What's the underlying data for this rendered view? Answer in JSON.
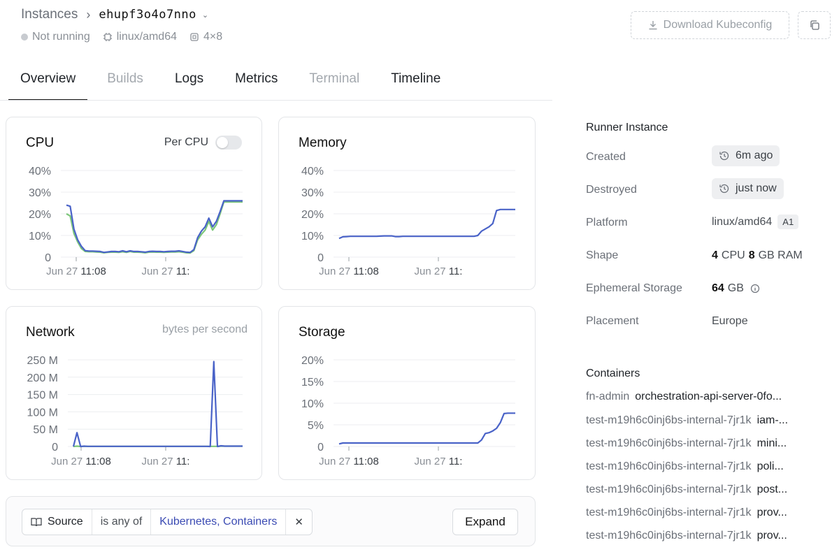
{
  "breadcrumb": {
    "root": "Instances",
    "instance_id": "ehupf3o4o7nno"
  },
  "meta": {
    "status": "Not running",
    "platform": "linux/amd64",
    "shape": "4×8"
  },
  "actions": {
    "download_label": "Download Kubeconfig"
  },
  "tabs": [
    {
      "label": "Overview",
      "state": "active"
    },
    {
      "label": "Builds",
      "state": "disabled"
    },
    {
      "label": "Logs",
      "state": "enabled"
    },
    {
      "label": "Metrics",
      "state": "enabled"
    },
    {
      "label": "Terminal",
      "state": "disabled"
    },
    {
      "label": "Timeline",
      "state": "enabled"
    }
  ],
  "cards": {
    "cpu": {
      "title": "CPU",
      "toggle_label": "Per CPU"
    },
    "memory": {
      "title": "Memory"
    },
    "network": {
      "title": "Network",
      "subtitle": "bytes per second"
    },
    "storage": {
      "title": "Storage"
    }
  },
  "colors": {
    "series_primary": "#4a63c8",
    "series_secondary": "#7cc67a",
    "grid": "#eceef0"
  },
  "chart_data": [
    {
      "id": "cpu",
      "type": "line",
      "ylim": [
        0,
        40
      ],
      "yticks": [
        "40%",
        "30%",
        "20%",
        "10%",
        "0"
      ],
      "x_tick_labels": [
        {
          "date": "Jun 27",
          "time": "11:08"
        },
        {
          "date": "Jun 27",
          "time": "11:"
        }
      ],
      "series": [
        {
          "values": [
            24,
            23.5,
            13,
            8,
            5,
            3,
            2.8,
            2.8,
            2.7,
            2.6,
            2.2,
            2.4,
            2.6,
            2.6,
            2.5,
            2.9,
            2.5,
            2.9,
            2.6,
            2.6,
            2.5,
            2.3,
            2.6,
            2.7,
            2.6,
            2.6,
            2.5,
            2.6,
            2.7,
            2.7,
            2.9,
            2.6,
            2.3,
            2.2,
            3.5,
            9,
            12,
            14,
            18,
            14,
            16.5,
            21,
            26,
            26,
            26,
            26,
            26,
            26
          ]
        },
        {
          "values": [
            20,
            19,
            11,
            7,
            4,
            2.6,
            2.5,
            2.5,
            2.4,
            2.3,
            2.0,
            2.2,
            2.3,
            2.3,
            2.2,
            2.5,
            2.2,
            2.6,
            2.3,
            2.3,
            2.2,
            2.0,
            2.3,
            2.4,
            2.3,
            2.3,
            2.2,
            2.3,
            2.4,
            2.4,
            2.5,
            2.3,
            2.0,
            1.9,
            3,
            8,
            10.5,
            12.5,
            16.5,
            12.5,
            15,
            20,
            25.5,
            25.5,
            25.5,
            25.5,
            25.5,
            25.5
          ]
        }
      ]
    },
    {
      "id": "memory",
      "type": "line",
      "ylim": [
        0,
        40
      ],
      "yticks": [
        "40%",
        "30%",
        "20%",
        "10%",
        "0"
      ],
      "x_tick_labels": [
        {
          "date": "Jun 27",
          "time": "11:08"
        },
        {
          "date": "Jun 27",
          "time": "11:"
        }
      ],
      "series": [
        {
          "values": [
            8.6,
            9.4,
            9.5,
            9.6,
            9.6,
            9.6,
            9.6,
            9.6,
            9.6,
            9.6,
            9.6,
            9.7,
            9.8,
            9.8,
            9.8,
            9.5,
            9.5,
            9.6,
            9.6,
            9.6,
            9.6,
            9.6,
            9.6,
            9.6,
            9.6,
            9.6,
            9.6,
            9.6,
            9.6,
            9.6,
            9.6,
            9.6,
            9.6,
            9.6,
            9.6,
            9.6,
            9.6,
            10,
            12,
            13,
            14,
            15.5,
            21.5,
            22,
            22,
            22,
            22,
            22
          ]
        }
      ]
    },
    {
      "id": "network",
      "type": "line",
      "ylim": [
        0,
        250
      ],
      "yticks": [
        "250 M",
        "200 M",
        "150 M",
        "100 M",
        "50 M",
        "0"
      ],
      "x_tick_labels": [
        {
          "date": "Jun 27",
          "time": "11:08"
        },
        {
          "date": "Jun 27",
          "time": "11:"
        }
      ],
      "series": [
        {
          "values": [
            0,
            40,
            0,
            1,
            0.5,
            0.5,
            0.5,
            0.5,
            0.5,
            0.5,
            0.5,
            0.5,
            0.5,
            0.5,
            0.5,
            0.5,
            0.5,
            0.5,
            0.5,
            0.5,
            0.5,
            0.5,
            0.5,
            0.5,
            0.5,
            0.5,
            0.5,
            0.5,
            0.5,
            0.5,
            0.5,
            0.5,
            0.5,
            0.5,
            0.5,
            0.5,
            0.5,
            0.5,
            0,
            245,
            0,
            2,
            1,
            1,
            1,
            1,
            1,
            1
          ]
        },
        {
          "values": [
            0,
            1,
            0,
            0.5,
            0.5,
            0.5,
            0.5,
            0.5,
            0.5,
            0.5,
            0.5,
            0.5,
            0.5,
            0.5,
            0.5,
            0.5,
            0.5,
            0.5,
            0.5,
            0.5,
            0.5,
            0.5,
            0.5,
            0.5,
            0.5,
            0.5,
            0.5,
            0.5,
            0.5,
            0.5,
            0.5,
            0.5,
            0.5,
            0.5,
            0.5,
            0.5,
            0.5,
            0.5,
            0.5,
            0.5,
            0.5,
            1,
            1,
            1,
            1,
            1,
            1,
            1
          ]
        }
      ]
    },
    {
      "id": "storage",
      "type": "line",
      "ylim": [
        0,
        20
      ],
      "yticks": [
        "20%",
        "15%",
        "10%",
        "5%",
        "0"
      ],
      "x_tick_labels": [
        {
          "date": "Jun 27",
          "time": "11:08"
        },
        {
          "date": "Jun 27",
          "time": "11:"
        }
      ],
      "series": [
        {
          "values": [
            0.6,
            0.8,
            0.8,
            0.8,
            0.8,
            0.8,
            0.8,
            0.8,
            0.8,
            0.8,
            0.8,
            0.8,
            0.8,
            0.8,
            0.8,
            0.8,
            0.8,
            0.8,
            0.8,
            0.8,
            0.8,
            0.8,
            0.8,
            0.8,
            0.8,
            0.8,
            0.8,
            0.8,
            0.8,
            0.8,
            0.8,
            0.8,
            0.8,
            0.8,
            0.8,
            0.8,
            0.8,
            0.8,
            1.5,
            3,
            3.2,
            3.6,
            4.2,
            5.5,
            7.6,
            7.7,
            7.7,
            7.7
          ]
        }
      ]
    }
  ],
  "filter": {
    "field": "Source",
    "operator": "is any of",
    "value": "Kubernetes, Containers",
    "expand_label": "Expand"
  },
  "runner": {
    "heading": "Runner Instance",
    "created_label": "Created",
    "created_value": "6m ago",
    "destroyed_label": "Destroyed",
    "destroyed_value": "just now",
    "platform_label": "Platform",
    "platform_value": "linux/amd64",
    "platform_badge": "A1",
    "shape_label": "Shape",
    "shape_cpu": "4",
    "shape_cpu_unit": "CPU",
    "shape_ram": "8",
    "shape_ram_unit": "GB RAM",
    "storage_label": "Ephemeral Storage",
    "storage_value": "64",
    "storage_unit": "GB",
    "placement_label": "Placement",
    "placement_value": "Europe"
  },
  "containers": {
    "heading": "Containers",
    "rows": [
      {
        "pod": "fn-admin",
        "name": "orchestration-api-server-0fo..."
      },
      {
        "pod": "test-m19h6c0inj6bs-internal-7jr1k",
        "name": "iam-..."
      },
      {
        "pod": "test-m19h6c0inj6bs-internal-7jr1k",
        "name": "mini..."
      },
      {
        "pod": "test-m19h6c0inj6bs-internal-7jr1k",
        "name": "poli..."
      },
      {
        "pod": "test-m19h6c0inj6bs-internal-7jr1k",
        "name": "post..."
      },
      {
        "pod": "test-m19h6c0inj6bs-internal-7jr1k",
        "name": "prov..."
      },
      {
        "pod": "test-m19h6c0inj6bs-internal-7jr1k",
        "name": "prov..."
      }
    ]
  }
}
